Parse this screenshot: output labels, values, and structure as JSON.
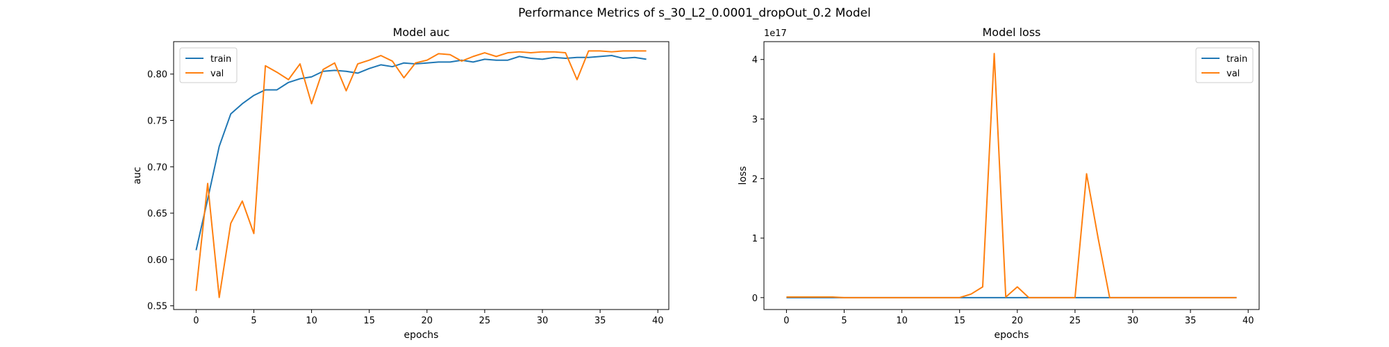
{
  "suptitle": "Performance Metrics of s_30_L2_0.0001_dropOut_0.2 Model",
  "colors": {
    "train": "#1f77b4",
    "val": "#ff7f0e"
  },
  "chart_data": [
    {
      "type": "line",
      "title": "Model auc",
      "xlabel": "epochs",
      "ylabel": "auc",
      "xlim": [
        -1.95,
        40.95
      ],
      "ylim": [
        0.546,
        0.835
      ],
      "xticks": [
        0,
        5,
        10,
        15,
        20,
        25,
        30,
        35,
        40
      ],
      "yticks": [
        0.55,
        0.6,
        0.65,
        0.7,
        0.75,
        0.8
      ],
      "ytick_labels": [
        "0.55",
        "0.60",
        "0.65",
        "0.70",
        "0.75",
        "0.80"
      ],
      "legend_position": "upper-left",
      "grid": false,
      "series": [
        {
          "name": "train",
          "color": "#1f77b4",
          "values": [
            0.61,
            0.665,
            0.722,
            0.757,
            0.768,
            0.777,
            0.783,
            0.783,
            0.791,
            0.795,
            0.797,
            0.803,
            0.804,
            0.803,
            0.801,
            0.806,
            0.81,
            0.808,
            0.812,
            0.811,
            0.812,
            0.813,
            0.813,
            0.815,
            0.813,
            0.816,
            0.815,
            0.815,
            0.819,
            0.817,
            0.816,
            0.818,
            0.817,
            0.818,
            0.818,
            0.819,
            0.82,
            0.817,
            0.818,
            0.816
          ]
        },
        {
          "name": "val",
          "color": "#ff7f0e",
          "values": [
            0.566,
            0.682,
            0.559,
            0.639,
            0.663,
            0.628,
            0.809,
            0.802,
            0.794,
            0.811,
            0.768,
            0.805,
            0.812,
            0.782,
            0.811,
            0.815,
            0.82,
            0.814,
            0.796,
            0.812,
            0.815,
            0.822,
            0.821,
            0.814,
            0.819,
            0.823,
            0.819,
            0.823,
            0.824,
            0.823,
            0.824,
            0.824,
            0.823,
            0.794,
            0.825,
            0.825,
            0.824,
            0.825,
            0.825,
            0.825
          ]
        }
      ]
    },
    {
      "type": "line",
      "title": "Model loss",
      "xlabel": "epochs",
      "ylabel": "loss",
      "offset_label": "1e17",
      "xlim": [
        -1.95,
        40.95
      ],
      "ylim": [
        -0.2,
        4.3
      ],
      "xticks": [
        0,
        5,
        10,
        15,
        20,
        25,
        30,
        35,
        40
      ],
      "yticks": [
        0,
        1,
        2,
        3,
        4
      ],
      "ytick_labels": [
        "0",
        "1",
        "2",
        "3",
        "4"
      ],
      "legend_position": "upper-right",
      "grid": false,
      "series": [
        {
          "name": "train",
          "color": "#1f77b4",
          "values": [
            0,
            0,
            0,
            0,
            0,
            0,
            0,
            0,
            0,
            0,
            0,
            0,
            0,
            0,
            0,
            0,
            0,
            0,
            0,
            0,
            0,
            0,
            0,
            0,
            0,
            0,
            0,
            0,
            0,
            0,
            0,
            0,
            0,
            0,
            0,
            0,
            0,
            0,
            0,
            0
          ]
        },
        {
          "name": "val",
          "color": "#ff7f0e",
          "values": [
            0.01,
            0.01,
            0.01,
            0.01,
            0.01,
            0,
            0,
            0,
            0,
            0,
            0,
            0,
            0,
            0,
            0,
            0,
            0.06,
            0.18,
            4.1,
            0.01,
            0.18,
            0,
            0,
            0,
            0,
            0,
            2.08,
            1.0,
            0,
            0,
            0,
            0,
            0,
            0,
            0,
            0,
            0,
            0,
            0,
            0
          ]
        }
      ]
    }
  ]
}
